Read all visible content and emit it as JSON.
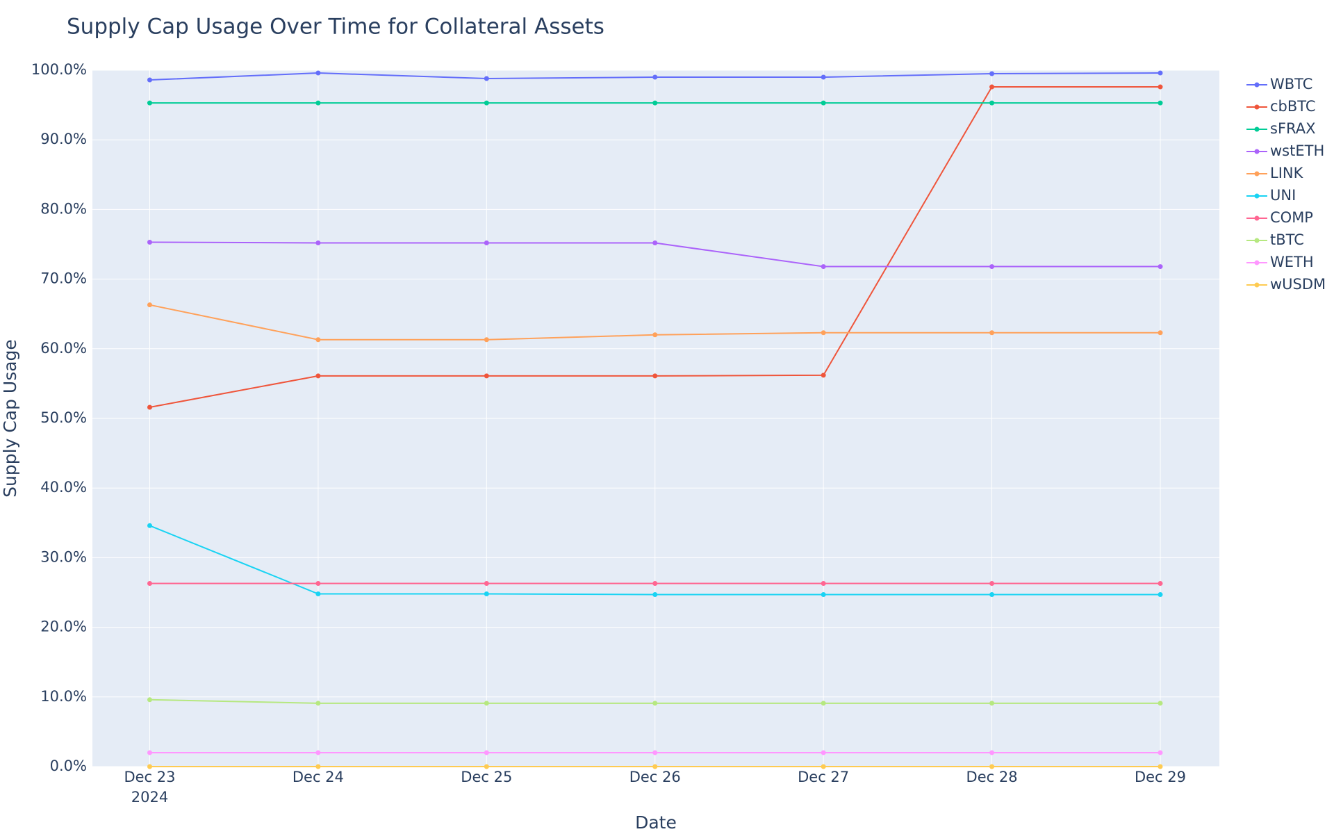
{
  "chart_data": {
    "type": "line",
    "title": "Supply Cap Usage Over Time for Collateral Assets",
    "x_label": "Date",
    "y_label": "Supply Cap Usage",
    "x": [
      "2024-12-23",
      "2024-12-24",
      "2024-12-25",
      "2024-12-26",
      "2024-12-27",
      "2024-12-28",
      "2024-12-29"
    ],
    "xlim": [
      "2024-12-22T15:50:00Z",
      "2024-12-29T08:25:00Z"
    ],
    "xticks": [
      {
        "value": "2024-12-23",
        "label": "Dec 23"
      },
      {
        "value": "2024-12-24",
        "label": "Dec 24"
      },
      {
        "value": "2024-12-25",
        "label": "Dec 25"
      },
      {
        "value": "2024-12-26",
        "label": "Dec 26"
      },
      {
        "value": "2024-12-27",
        "label": "Dec 27"
      },
      {
        "value": "2024-12-28",
        "label": "Dec 28"
      },
      {
        "value": "2024-12-29",
        "label": "Dec 29"
      }
    ],
    "xtick_year": "2024",
    "ylim": [
      0,
      100
    ],
    "yticks": [
      {
        "value": 0,
        "label": "0.0%"
      },
      {
        "value": 10,
        "label": "10.0%"
      },
      {
        "value": 20,
        "label": "20.0%"
      },
      {
        "value": 30,
        "label": "30.0%"
      },
      {
        "value": 40,
        "label": "40.0%"
      },
      {
        "value": 50,
        "label": "50.0%"
      },
      {
        "value": 60,
        "label": "60.0%"
      },
      {
        "value": 70,
        "label": "70.0%"
      },
      {
        "value": 80,
        "label": "80.0%"
      },
      {
        "value": 90,
        "label": "90.0%"
      },
      {
        "value": 100,
        "label": "100.0%"
      }
    ],
    "grid": true,
    "legend": "outside-right",
    "series": [
      {
        "name": "WBTC",
        "color": "#636efa",
        "values": [
          98.6,
          99.6,
          98.8,
          99.0,
          99.0,
          99.5,
          99.6
        ]
      },
      {
        "name": "cbBTC",
        "color": "#EF553B",
        "values": [
          51.6,
          56.1,
          56.1,
          56.1,
          56.2,
          97.6,
          97.6
        ]
      },
      {
        "name": "sFRAX",
        "color": "#00cc96",
        "values": [
          95.3,
          95.3,
          95.3,
          95.3,
          95.3,
          95.3,
          95.3
        ]
      },
      {
        "name": "wstETH",
        "color": "#ab63fa",
        "values": [
          75.3,
          75.2,
          75.2,
          75.2,
          71.8,
          71.8,
          71.8
        ]
      },
      {
        "name": "LINK",
        "color": "#FFA15A",
        "values": [
          66.3,
          61.3,
          61.3,
          62.0,
          62.3,
          62.3,
          62.3
        ]
      },
      {
        "name": "UNI",
        "color": "#19d3f3",
        "values": [
          34.6,
          24.8,
          24.8,
          24.7,
          24.7,
          24.7,
          24.7
        ]
      },
      {
        "name": "COMP",
        "color": "#FF6692",
        "values": [
          26.3,
          26.3,
          26.3,
          26.3,
          26.3,
          26.3,
          26.3
        ]
      },
      {
        "name": "tBTC",
        "color": "#B6E880",
        "values": [
          9.6,
          9.1,
          9.1,
          9.1,
          9.1,
          9.1,
          9.1
        ]
      },
      {
        "name": "WETH",
        "color": "#FF97FF",
        "values": [
          2.0,
          2.0,
          2.0,
          2.0,
          2.0,
          2.0,
          2.0
        ]
      },
      {
        "name": "wUSDM",
        "color": "#FECB52",
        "values": [
          0,
          0,
          0,
          0,
          0,
          0,
          0
        ]
      }
    ]
  }
}
